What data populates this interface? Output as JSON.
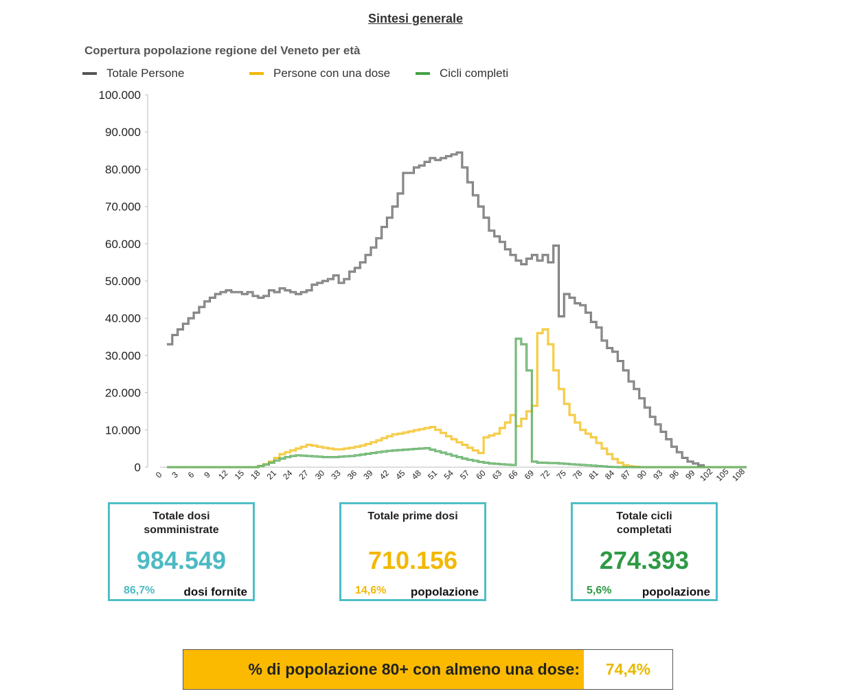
{
  "page": {
    "title": "Sintesi generale"
  },
  "chart_data": {
    "type": "line",
    "title": "Copertura popolazione regione del Veneto per età",
    "xlabel": "",
    "ylabel": "",
    "x_ticks": [
      "0",
      "3",
      "6",
      "9",
      "12",
      "15",
      "18",
      "21",
      "24",
      "27",
      "30",
      "33",
      "36",
      "39",
      "42",
      "45",
      "48",
      "51",
      "54",
      "57",
      "60",
      "63",
      "66",
      "69",
      "72",
      "75",
      "78",
      "81",
      "84",
      "87",
      "90",
      "93",
      "96",
      "99",
      "102",
      "105",
      "108"
    ],
    "y_ticks": [
      "0",
      "10.000",
      "20.000",
      "30.000",
      "40.000",
      "50.000",
      "60.000",
      "70.000",
      "80.000",
      "90.000",
      "100.000"
    ],
    "ylim": [
      0,
      100000
    ],
    "xlim": [
      0,
      108
    ],
    "legend": "top",
    "grid": false,
    "x": [
      0,
      1,
      2,
      3,
      4,
      5,
      6,
      7,
      8,
      9,
      10,
      11,
      12,
      13,
      14,
      15,
      16,
      17,
      18,
      19,
      20,
      21,
      22,
      23,
      24,
      25,
      26,
      27,
      28,
      29,
      30,
      31,
      32,
      33,
      34,
      35,
      36,
      37,
      38,
      39,
      40,
      41,
      42,
      43,
      44,
      45,
      46,
      47,
      48,
      49,
      50,
      51,
      52,
      53,
      54,
      55,
      56,
      57,
      58,
      59,
      60,
      61,
      62,
      63,
      64,
      65,
      66,
      67,
      68,
      69,
      70,
      71,
      72,
      73,
      74,
      75,
      76,
      77,
      78,
      79,
      80,
      81,
      82,
      83,
      84,
      85,
      86,
      87,
      88,
      89,
      90,
      91,
      92,
      93,
      94,
      95,
      96,
      97,
      98,
      99,
      100,
      101,
      102,
      103,
      104,
      105,
      106,
      107,
      108
    ],
    "series": [
      {
        "name": "Totale Persone",
        "color": "#555555",
        "values": [
          33000,
          35500,
          37000,
          38500,
          40000,
          41500,
          43000,
          44500,
          45500,
          46500,
          47000,
          47500,
          47000,
          47000,
          46500,
          47000,
          46000,
          45500,
          46000,
          47500,
          47000,
          48000,
          47500,
          47000,
          46500,
          47000,
          47500,
          49000,
          49500,
          50000,
          50500,
          51500,
          49500,
          50500,
          52500,
          53500,
          55000,
          57000,
          59000,
          61500,
          64500,
          67000,
          70000,
          73500,
          79000,
          79000,
          80500,
          81000,
          82000,
          83000,
          82500,
          83000,
          83500,
          84000,
          84500,
          80500,
          76500,
          73000,
          70000,
          67000,
          63500,
          62000,
          60500,
          58500,
          57000,
          55500,
          54500,
          56000,
          57000,
          55500,
          57000,
          55000,
          59500,
          40500,
          46500,
          45500,
          44000,
          43500,
          41500,
          39000,
          37500,
          34000,
          32000,
          31000,
          28500,
          26000,
          23000,
          21000,
          18500,
          16000,
          13500,
          11500,
          9500,
          7500,
          5500,
          4000,
          2500,
          1500,
          1000,
          500,
          0,
          0,
          0,
          0,
          0,
          0,
          0,
          0,
          0
        ]
      },
      {
        "name": "Persone con una dose",
        "color": "#f2b800",
        "values": [
          0,
          0,
          0,
          0,
          0,
          0,
          0,
          0,
          0,
          0,
          0,
          0,
          0,
          0,
          0,
          0,
          0,
          300,
          800,
          1500,
          2500,
          3500,
          4000,
          4500,
          5000,
          5500,
          6000,
          5800,
          5500,
          5200,
          5000,
          4800,
          4800,
          5000,
          5200,
          5500,
          5800,
          6200,
          6700,
          7200,
          7800,
          8300,
          8800,
          9000,
          9300,
          9600,
          9900,
          10200,
          10500,
          10800,
          10000,
          9200,
          8300,
          7500,
          6700,
          6000,
          5200,
          4500,
          3800,
          8000,
          8500,
          9000,
          10500,
          12000,
          14000,
          11000,
          13000,
          15000,
          16500,
          36000,
          37000,
          33000,
          26000,
          21000,
          17000,
          14000,
          12000,
          10000,
          9000,
          8000,
          6500,
          5000,
          3500,
          2200,
          1200,
          500,
          200,
          100,
          0,
          0,
          0,
          0,
          0,
          0,
          0,
          0,
          0,
          0,
          0,
          0,
          0,
          0,
          0,
          0,
          0,
          0,
          0,
          0,
          0
        ]
      },
      {
        "name": "Cicli completi",
        "color": "#43a047",
        "values": [
          0,
          0,
          0,
          0,
          0,
          0,
          0,
          0,
          0,
          0,
          0,
          0,
          0,
          0,
          0,
          0,
          0,
          300,
          700,
          1200,
          1800,
          2300,
          2700,
          3000,
          3200,
          3100,
          3000,
          2900,
          2800,
          2700,
          2700,
          2700,
          2800,
          2900,
          3000,
          3200,
          3400,
          3600,
          3800,
          4000,
          4200,
          4400,
          4500,
          4600,
          4700,
          4800,
          4900,
          5000,
          5100,
          4700,
          4300,
          3900,
          3500,
          3100,
          2700,
          2300,
          2000,
          1700,
          1400,
          1200,
          1000,
          900,
          800,
          700,
          600,
          34500,
          33000,
          26000,
          1500,
          1200,
          1200,
          1100,
          1100,
          1000,
          900,
          800,
          700,
          600,
          500,
          400,
          300,
          200,
          100,
          50,
          0,
          0,
          0,
          0,
          0,
          0,
          0,
          0,
          0,
          0,
          0,
          0,
          0,
          0,
          0,
          0,
          0,
          0,
          0,
          0,
          0,
          0,
          0,
          0,
          0
        ]
      }
    ]
  },
  "cards": [
    {
      "label": "Totale dosi somministrate",
      "value": "984.549",
      "pct": "86,7%",
      "sub": "dosi fornite",
      "color": "#4dbac3"
    },
    {
      "label": "Totale prime dosi",
      "value": "710.156",
      "pct": "14,6%",
      "sub": "popolazione",
      "color": "#f2b800"
    },
    {
      "label": "Totale cicli completati",
      "value": "274.393",
      "pct": "5,6%",
      "sub": "popolazione",
      "color": "#2e9a45"
    }
  ],
  "bottom": {
    "label": "% di popolazione 80+ con almeno una dose:",
    "value": "74,4%"
  }
}
